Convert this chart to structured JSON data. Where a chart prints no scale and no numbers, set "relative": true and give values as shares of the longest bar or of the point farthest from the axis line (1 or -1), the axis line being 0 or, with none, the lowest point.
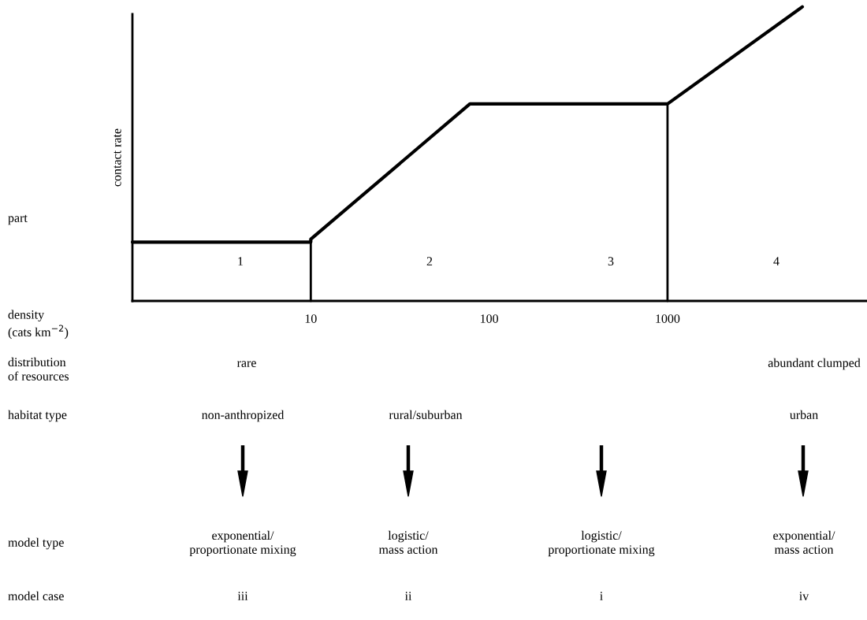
{
  "chart_data": {
    "type": "line",
    "relative": true,
    "log": "x",
    "ylabel": "contact rate",
    "xlim": [
      1,
      13000
    ],
    "xticks": [
      10,
      100,
      1000
    ],
    "grid": false,
    "marker": "none",
    "line_style": "solid",
    "series": [
      {
        "color": "#000000",
        "x": [
          1,
          10,
          10,
          78,
          1000,
          5700
        ],
        "values": [
          0.2,
          0.2,
          0.21,
          0.67,
          0.67,
          1.0
        ]
      },
      {
        "color": "#000000",
        "x": [
          10,
          10
        ],
        "values": [
          0,
          0.2
        ]
      },
      {
        "color": "#000000",
        "x": [
          1000,
          1000
        ],
        "values": [
          0,
          0.67
        ]
      }
    ],
    "annotations": [
      "part",
      "1",
      "2",
      "3",
      "4",
      "density\n(cats km$^{−2}$)",
      "distribution\nof resources",
      "rare",
      "abundant clumped",
      "habitat type",
      "non-anthropized",
      "rural/suburban",
      "urban",
      "model type",
      "exponential/\nproportionate mixing",
      "logistic/\nmass action",
      "logistic/\nproportionate mixing",
      "exponential/\nmass action",
      "model case",
      "iii",
      "ii",
      "i",
      "iv"
    ]
  }
}
